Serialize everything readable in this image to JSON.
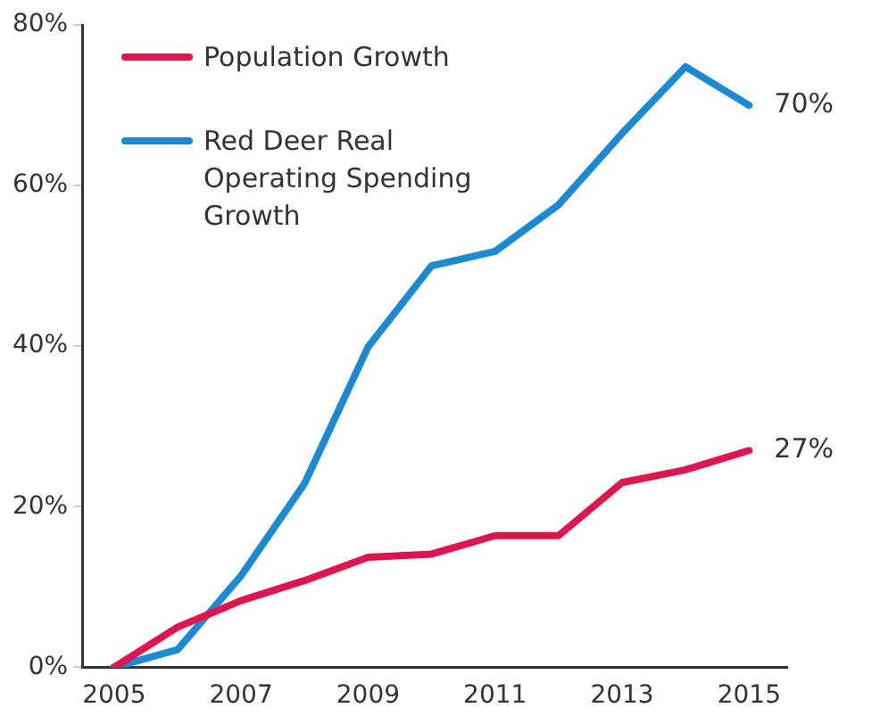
{
  "chart_data": {
    "type": "line",
    "x": [
      2005,
      2006,
      2007,
      2008,
      2009,
      2010,
      2011,
      2012,
      2013,
      2014,
      2015
    ],
    "series": [
      {
        "name": "Population Growth",
        "color": "#e3134e",
        "values": [
          0,
          5,
          8.3,
          10.8,
          13.7,
          14.1,
          16.4,
          16.4,
          23,
          24.6,
          27
        ]
      },
      {
        "name": "Red Deer Real Operating Spending Growth",
        "color": "#1a8ad4",
        "values": [
          0,
          2.2,
          11.4,
          22.9,
          39.9,
          50,
          51.8,
          57.6,
          66.5,
          74.8,
          70
        ]
      }
    ],
    "xlim": [
      2004.5,
      2015.6
    ],
    "xticks": [
      2005,
      2007,
      2009,
      2011,
      2013,
      2015
    ],
    "ylim": [
      0,
      80
    ],
    "yticks": [
      {
        "value": 0,
        "label": "0%"
      },
      {
        "value": 20,
        "label": "20%"
      },
      {
        "value": 40,
        "label": "40%"
      },
      {
        "value": 60,
        "label": "60%"
      },
      {
        "value": 80,
        "label": "80%"
      }
    ],
    "annotations": [
      {
        "text": "70%",
        "x": 2015,
        "y": 70
      },
      {
        "text": "27%",
        "x": 2015,
        "y": 27
      }
    ],
    "grid": false,
    "legend": "top left",
    "marker": "none",
    "line_style": "solid"
  }
}
